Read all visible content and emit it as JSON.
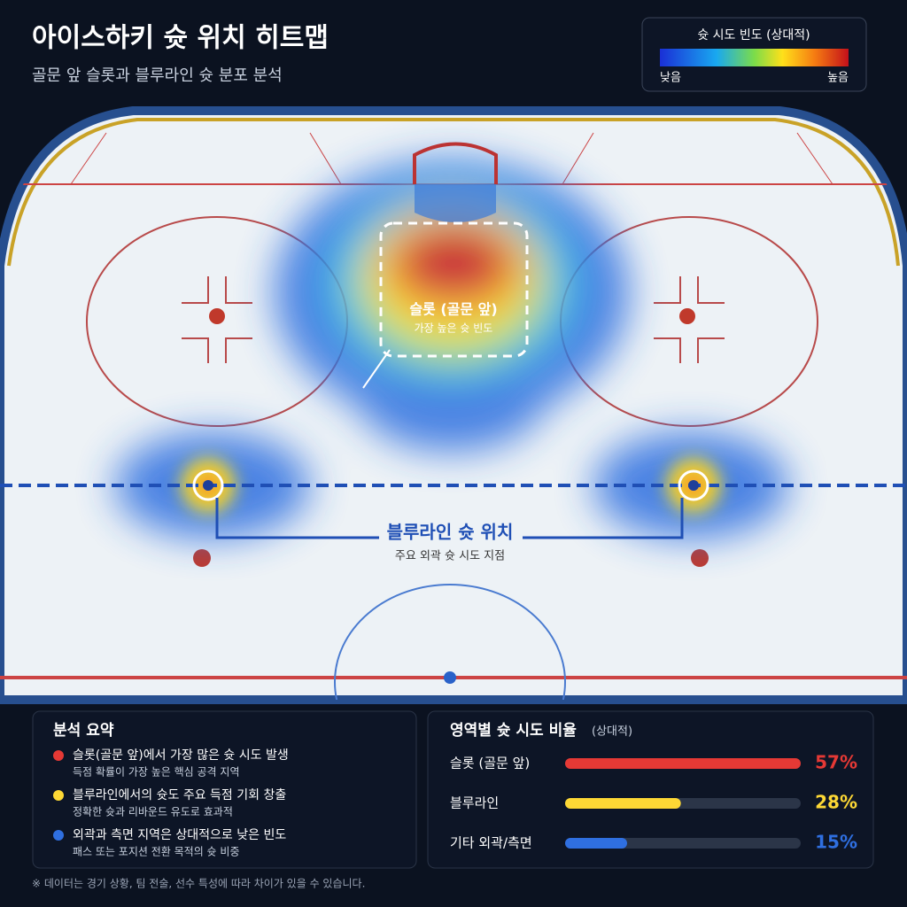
{
  "header": {
    "title": "아이스하키 슛 위치 히트맵",
    "subtitle": "골문 앞 슬롯과 블루라인 슛 분포 분석"
  },
  "legend": {
    "title": "슛 시도 빈도 (상대적)",
    "low": "낮음",
    "high": "높음"
  },
  "rink": {
    "slot_label": "슬롯 (골문 앞)",
    "slot_note": "가장 높은 슛 빈도",
    "blueline_label": "블루라인 슛 위치",
    "blueline_note": "주요 외곽 슛 시도 지점"
  },
  "summary": {
    "title": "분석 요약",
    "items": [
      {
        "text": "슬롯(골문 앞)에서 가장 많은 슛 시도 발생",
        "note": "득점 확률이 가장 높은 핵심 공격 지역"
      },
      {
        "text": "블루라인에서의 슛도 주요 득점 기회 창출",
        "note": "정확한 슛과 리바운드 유도로 효과적"
      },
      {
        "text": "외곽과 측면 지역은 상대적으로 낮은 빈도",
        "note": "패스 또는 포지션 전환 목적의 슛 비중"
      }
    ]
  },
  "chart_data": {
    "type": "bar",
    "title": "영역별 슛 시도 비율",
    "subtitle": "(상대적)",
    "categories": [
      "슬롯 (골문 앞)",
      "블루라인",
      "기타 외곽/측면"
    ],
    "values": [
      57,
      28,
      15
    ],
    "value_labels": [
      "57%",
      "28%",
      "15%"
    ],
    "colors": [
      "#e53935",
      "#fdd835",
      "#2f6fe0"
    ],
    "xlim": [
      0,
      57
    ]
  },
  "footnote": "※ 데이터는 경기 상황, 팀 전술, 선수 특성에 따라 차이가 있을 수 있습니다."
}
